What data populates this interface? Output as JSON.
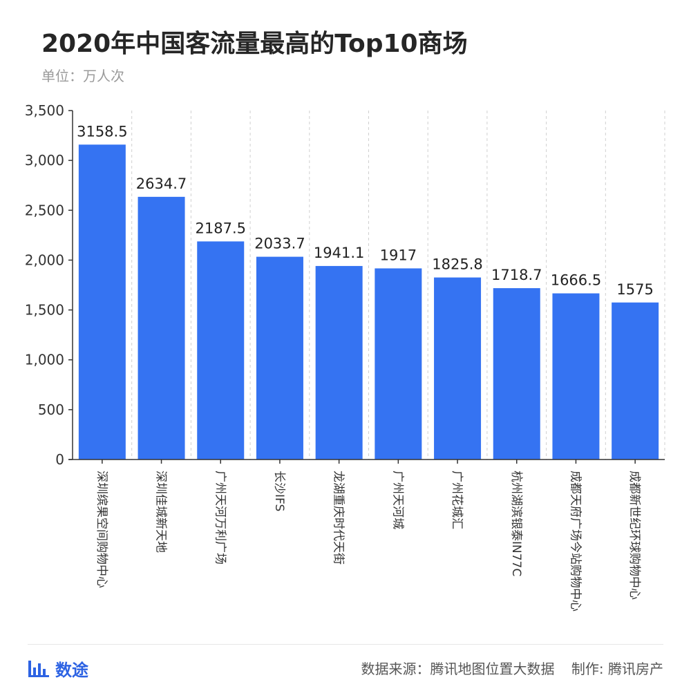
{
  "header": {
    "title": "2020年中国客流量最高的Top10商场",
    "unit": "单位：万人次"
  },
  "chart_data": {
    "type": "bar",
    "title": "2020年中国客流量最高的Top10商场",
    "subtitle": "单位：万人次",
    "xlabel": "",
    "ylabel": "",
    "categories": [
      "深圳缤果空间购物中心",
      "深圳佳城新天地",
      "广州天河万利广场",
      "长沙IFS",
      "龙湖重庆时代天街",
      "广州天河城",
      "广州花城汇",
      "杭州湖滨银泰IN77C",
      "成都天府广场今站购物中心",
      "成都新世纪环球购物中心"
    ],
    "values": [
      3158.5,
      2634.7,
      2187.5,
      2033.7,
      1941.1,
      1917,
      1825.8,
      1718.7,
      1666.5,
      1575
    ],
    "data_labels": [
      "3158.5",
      "2634.7",
      "2187.5",
      "2033.7",
      "1941.1",
      "1917",
      "1825.8",
      "1718.7",
      "1666.5",
      "1575"
    ],
    "y_ticks": [
      0,
      500,
      1000,
      1500,
      2000,
      2500,
      3000,
      3500
    ],
    "y_tick_labels": [
      "0",
      "500",
      "1,000",
      "1,500",
      "2,000",
      "2,500",
      "3,000",
      "3,500"
    ],
    "ylim": [
      0,
      3500
    ],
    "grid": "vertical dashed",
    "legend": "none",
    "bar_color": "#3573f2"
  },
  "footer": {
    "brand": "数途",
    "source": "数据来源：腾讯地图位置大数据",
    "maker": "制作: 腾讯房产"
  }
}
